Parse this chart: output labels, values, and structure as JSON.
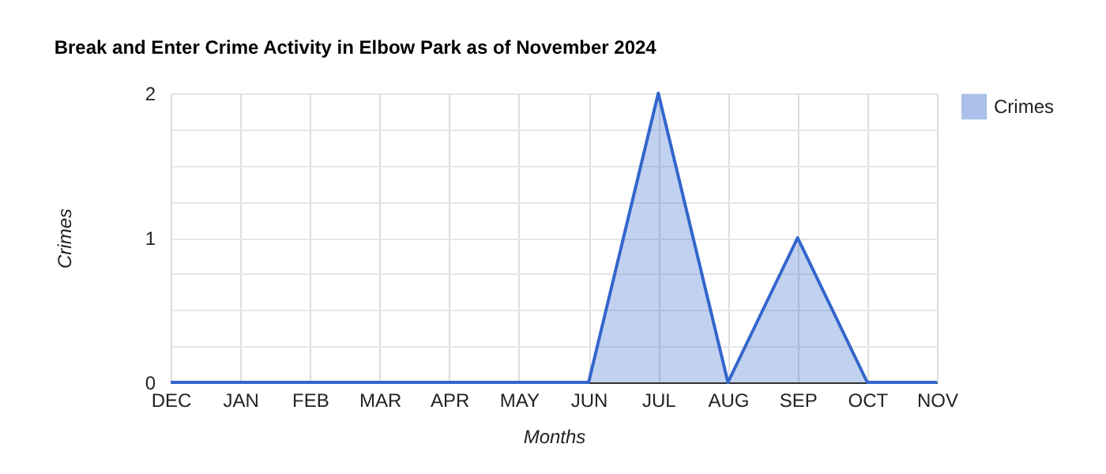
{
  "chart_data": {
    "type": "area",
    "title": "Break and Enter Crime Activity in Elbow Park as of November 2024",
    "xlabel": "Months",
    "ylabel": "Crimes",
    "categories": [
      "DEC",
      "JAN",
      "FEB",
      "MAR",
      "APR",
      "MAY",
      "JUN",
      "JUL",
      "AUG",
      "SEP",
      "OCT",
      "NOV"
    ],
    "series": [
      {
        "name": "Crimes",
        "color": "#3366cc",
        "values": [
          0,
          0,
          0,
          0,
          0,
          0,
          0,
          2,
          0,
          1,
          0,
          0
        ]
      }
    ],
    "ylim": [
      0,
      2
    ],
    "yticks": [
      0,
      {
        "value": 0.25,
        "label": null
      },
      {
        "value": 0.5,
        "label": null
      },
      {
        "value": 0.75,
        "label": null
      },
      1,
      {
        "value": 1.25,
        "label": null
      },
      {
        "value": 1.5,
        "label": null
      },
      {
        "value": 1.75,
        "label": null
      },
      2
    ],
    "grid": true,
    "legend": "right"
  }
}
